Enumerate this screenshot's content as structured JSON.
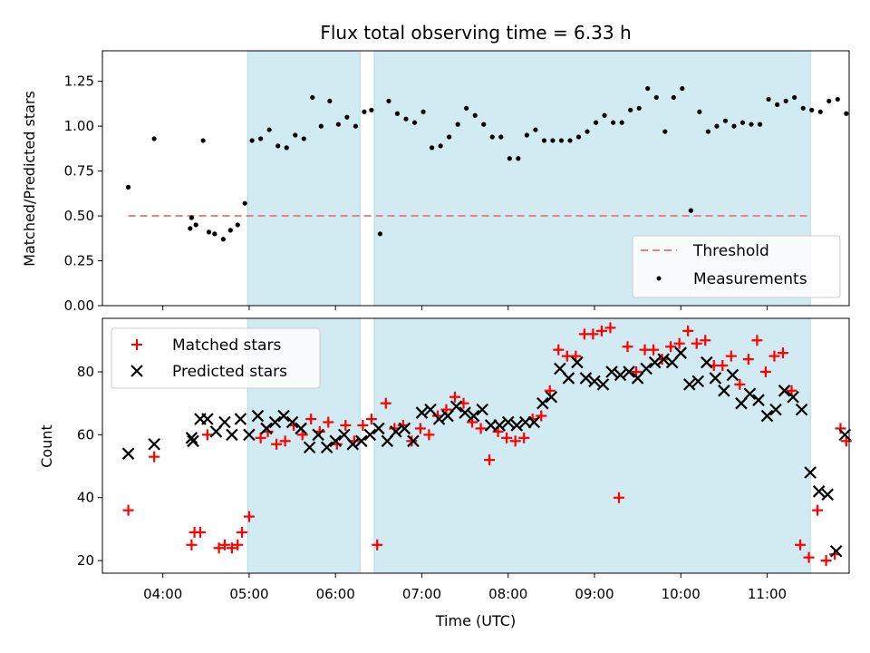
{
  "chart_data": [
    {
      "type": "scatter",
      "title": "Flux total observing time = 6.33 h",
      "xlabel": "",
      "ylabel": "Matched/Predicted stars",
      "xlim": [
        "03:18",
        "11:57"
      ],
      "ylim": [
        0,
        1.42
      ],
      "yticks": [
        "0.00",
        "0.25",
        "0.50",
        "0.75",
        "1.00",
        "1.25"
      ],
      "grid": false,
      "legend_position": "lower-right",
      "shaded_intervals": [
        [
          "04:59",
          "06:17"
        ],
        [
          "06:27",
          "11:30"
        ]
      ],
      "shade_color": "#add8e6",
      "threshold": {
        "name": "Threshold",
        "value": 0.5,
        "x_range": [
          "03:36",
          "11:30"
        ],
        "color": "#f08080"
      },
      "series": [
        {
          "name": "Measurements",
          "color": "#000000",
          "x": [
            "03:36",
            "03:54",
            "04:19",
            "04:20",
            "04:23",
            "04:28",
            "04:32",
            "04:36",
            "04:42",
            "04:47",
            "04:52",
            "04:57",
            "05:02",
            "05:08",
            "05:14",
            "05:20",
            "05:26",
            "05:32",
            "05:38",
            "05:44",
            "05:50",
            "05:56",
            "06:02",
            "06:08",
            "06:14",
            "06:20",
            "06:25",
            "06:31",
            "06:37",
            "06:43",
            "06:49",
            "06:55",
            "07:01",
            "07:07",
            "07:13",
            "07:19",
            "07:25",
            "07:31",
            "07:37",
            "07:43",
            "07:49",
            "07:55",
            "08:01",
            "08:07",
            "08:13",
            "08:19",
            "08:25",
            "08:31",
            "08:37",
            "08:43",
            "08:49",
            "08:55",
            "09:01",
            "09:07",
            "09:13",
            "09:19",
            "09:25",
            "09:31",
            "09:37",
            "09:43",
            "09:49",
            "09:55",
            "10:01",
            "10:07",
            "10:13",
            "10:19",
            "10:25",
            "10:31",
            "10:37",
            "10:43",
            "10:49",
            "10:55",
            "11:01",
            "11:07",
            "11:13",
            "11:19",
            "11:25",
            "11:31",
            "11:37",
            "11:43",
            "11:49",
            "11:55"
          ],
          "values": [
            0.66,
            0.93,
            0.43,
            0.49,
            0.45,
            0.92,
            0.41,
            0.4,
            0.37,
            0.42,
            0.45,
            0.57,
            0.92,
            0.93,
            0.98,
            0.89,
            0.88,
            0.95,
            0.93,
            1.16,
            1.0,
            1.14,
            1.01,
            1.05,
            1.0,
            1.08,
            1.09,
            0.4,
            1.14,
            1.07,
            1.04,
            1.02,
            1.08,
            0.88,
            0.89,
            0.94,
            1.01,
            1.1,
            1.06,
            1.01,
            0.94,
            0.94,
            0.82,
            0.82,
            0.95,
            0.98,
            0.92,
            0.92,
            0.92,
            0.92,
            0.94,
            0.97,
            1.02,
            1.06,
            1.02,
            1.02,
            1.09,
            1.1,
            1.21,
            1.16,
            0.97,
            1.16,
            1.21,
            0.53,
            1.08,
            0.97,
            1.0,
            1.03,
            1.0,
            1.02,
            1.01,
            1.01,
            1.15,
            1.12,
            1.14,
            1.16,
            1.1,
            1.09,
            1.08,
            1.14,
            1.15,
            1.07
          ]
        }
      ]
    },
    {
      "type": "scatter",
      "title": "",
      "xlabel": "Time (UTC)",
      "ylabel": "Count",
      "xlim": [
        "03:18",
        "11:57"
      ],
      "xticks": [
        "04:00",
        "05:00",
        "06:00",
        "07:00",
        "08:00",
        "09:00",
        "10:00",
        "11:00"
      ],
      "ylim": [
        16,
        97
      ],
      "yticks": [
        "20",
        "40",
        "60",
        "80"
      ],
      "grid": false,
      "legend_position": "upper-left",
      "shaded_intervals": [
        [
          "04:59",
          "06:17"
        ],
        [
          "06:27",
          "11:30"
        ]
      ],
      "shade_color": "#add8e6",
      "series": [
        {
          "name": "Matched stars",
          "marker": "+",
          "color": "#ff0000",
          "x": [
            "03:36",
            "03:54",
            "04:20",
            "04:22",
            "04:26",
            "04:31",
            "04:39",
            "04:43",
            "04:48",
            "04:52",
            "04:55",
            "05:00",
            "05:08",
            "05:13",
            "05:19",
            "05:25",
            "05:31",
            "05:37",
            "05:43",
            "05:49",
            "05:55",
            "06:01",
            "06:07",
            "06:13",
            "06:19",
            "06:25",
            "06:29",
            "06:35",
            "06:41",
            "06:47",
            "06:53",
            "06:59",
            "07:05",
            "07:11",
            "07:17",
            "07:23",
            "07:29",
            "07:35",
            "07:41",
            "07:47",
            "07:53",
            "07:59",
            "08:05",
            "08:11",
            "08:17",
            "08:23",
            "08:29",
            "08:35",
            "08:41",
            "08:47",
            "08:53",
            "08:59",
            "09:05",
            "09:11",
            "09:17",
            "09:23",
            "09:29",
            "09:35",
            "09:41",
            "09:47",
            "09:53",
            "09:59",
            "10:05",
            "10:11",
            "10:17",
            "10:23",
            "10:29",
            "10:35",
            "10:41",
            "10:47",
            "10:53",
            "10:59",
            "11:05",
            "11:11",
            "11:17",
            "11:23",
            "11:29",
            "11:35",
            "11:41",
            "11:47",
            "11:51",
            "11:55"
          ],
          "values": [
            36,
            53,
            25,
            29,
            29,
            60,
            24,
            25,
            24,
            25,
            29,
            34,
            59,
            61,
            57,
            58,
            63,
            60,
            65,
            61,
            64,
            57,
            63,
            58,
            63,
            65,
            25,
            70,
            62,
            63,
            58,
            62,
            60,
            66,
            68,
            72,
            70,
            64,
            62,
            52,
            61,
            59,
            58,
            59,
            65,
            66,
            74,
            87,
            85,
            85,
            92,
            92,
            93,
            94,
            40,
            88,
            80,
            87,
            87,
            84,
            88,
            89,
            93,
            89,
            90,
            82,
            82,
            85,
            76,
            84,
            90,
            80,
            85,
            86,
            74,
            25,
            21,
            36,
            20,
            22,
            62,
            58
          ],
          "note_ignore": false
        },
        {
          "name": "Predicted stars",
          "marker": "x",
          "color": "#000000",
          "x": [
            "03:36",
            "03:54",
            "04:20",
            "04:21",
            "04:26",
            "04:31",
            "04:37",
            "04:43",
            "04:48",
            "04:54",
            "05:00",
            "05:06",
            "05:12",
            "05:18",
            "05:24",
            "05:30",
            "05:36",
            "05:42",
            "05:48",
            "05:54",
            "06:00",
            "06:06",
            "06:12",
            "06:18",
            "06:24",
            "06:30",
            "06:36",
            "06:42",
            "06:48",
            "06:54",
            "07:00",
            "07:06",
            "07:12",
            "07:18",
            "07:24",
            "07:30",
            "07:36",
            "07:42",
            "07:48",
            "07:54",
            "08:00",
            "08:06",
            "08:12",
            "08:18",
            "08:24",
            "08:30",
            "08:36",
            "08:42",
            "08:48",
            "08:54",
            "09:00",
            "09:06",
            "09:12",
            "09:18",
            "09:24",
            "09:30",
            "09:36",
            "09:42",
            "09:48",
            "09:54",
            "10:00",
            "10:06",
            "10:12",
            "10:18",
            "10:24",
            "10:30",
            "10:36",
            "10:42",
            "10:48",
            "10:54",
            "11:00",
            "11:06",
            "11:12",
            "11:18",
            "11:24",
            "11:30",
            "11:36",
            "11:42",
            "11:48",
            "11:54"
          ],
          "values": [
            54,
            57,
            59,
            58,
            65,
            65,
            61,
            64,
            60,
            65,
            60,
            66,
            62,
            64,
            66,
            64,
            62,
            56,
            60,
            56,
            58,
            60,
            57,
            58,
            60,
            62,
            58,
            61,
            62,
            58,
            67,
            68,
            65,
            66,
            69,
            67,
            66,
            68,
            63,
            63,
            64,
            63,
            64,
            64,
            70,
            72,
            81,
            78,
            83,
            78,
            77,
            76,
            80,
            79,
            80,
            78,
            81,
            83,
            84,
            83,
            86,
            76,
            77,
            83,
            78,
            74,
            79,
            70,
            73,
            71,
            66,
            68,
            74,
            72,
            68,
            48,
            42,
            41,
            23,
            60
          ]
        }
      ]
    }
  ]
}
